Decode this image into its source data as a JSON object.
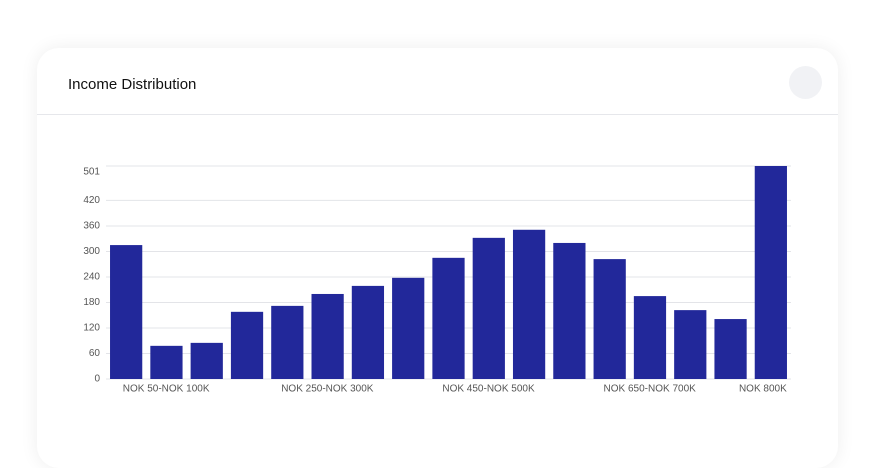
{
  "chart_data": {
    "type": "bar",
    "title": "Income Distribution",
    "categories": [
      "NOK 50-NOK 100K",
      null,
      null,
      null,
      "NOK 250-NOK 300K",
      null,
      null,
      null,
      "NOK 450-NOK 500K",
      null,
      null,
      null,
      "NOK 650-NOK 700K",
      null,
      null,
      null,
      "NOK 800K"
    ],
    "values": [
      315,
      78,
      85,
      158,
      172,
      200,
      219,
      238,
      285,
      332,
      351,
      320,
      282,
      195,
      162,
      141,
      501
    ],
    "color": "#22289a",
    "ylim": [
      0,
      501
    ],
    "yticks": [
      0,
      60,
      120,
      180,
      240,
      300,
      360,
      420,
      501
    ],
    "grid": true
  }
}
